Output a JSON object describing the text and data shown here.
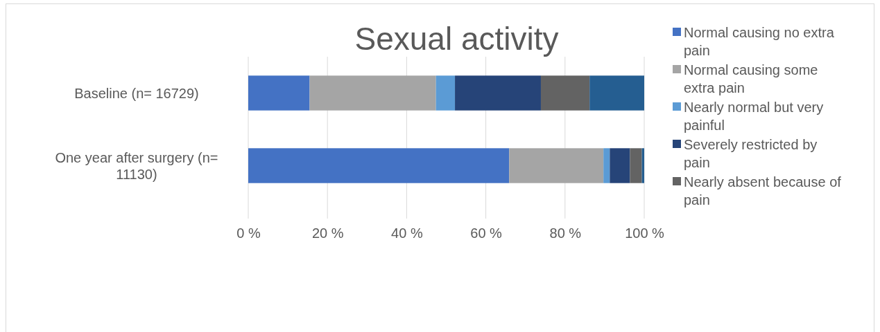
{
  "chart_data": {
    "type": "bar",
    "title": "Sexual activity",
    "orientation": "horizontal",
    "stacked": true,
    "categories": [
      "Baseline (n= 16729)",
      "One year after surgery (n= 11130)"
    ],
    "series": [
      {
        "name": "Normal causing no extra pain",
        "color": "#4472c4",
        "values": [
          15.5,
          65.9
        ]
      },
      {
        "name": "Normal causing some extra pain",
        "color": "#a5a5a5",
        "values": [
          31.9,
          23.8
        ]
      },
      {
        "name": "Nearly normal but very painful",
        "color": "#5b9bd5",
        "values": [
          4.8,
          1.6
        ]
      },
      {
        "name": "Severely restricted by pain",
        "color": "#264478",
        "values": [
          21.7,
          5.1
        ]
      },
      {
        "name": "Nearly absent because of pain",
        "color": "#636363",
        "values": [
          12.3,
          3.0
        ]
      },
      {
        "color": "#255e91",
        "values": [
          13.8,
          0.6
        ]
      }
    ],
    "xlim": [
      0,
      100
    ],
    "xticks": [
      {
        "value": 0,
        "label": "0 %"
      },
      {
        "value": 20,
        "label": "20 %"
      },
      {
        "value": 40,
        "label": "40 %"
      },
      {
        "value": 60,
        "label": "60 %"
      },
      {
        "value": 80,
        "label": "80 %"
      },
      {
        "value": 100,
        "label": "100 %"
      }
    ],
    "grid": "x",
    "legend": "right"
  }
}
